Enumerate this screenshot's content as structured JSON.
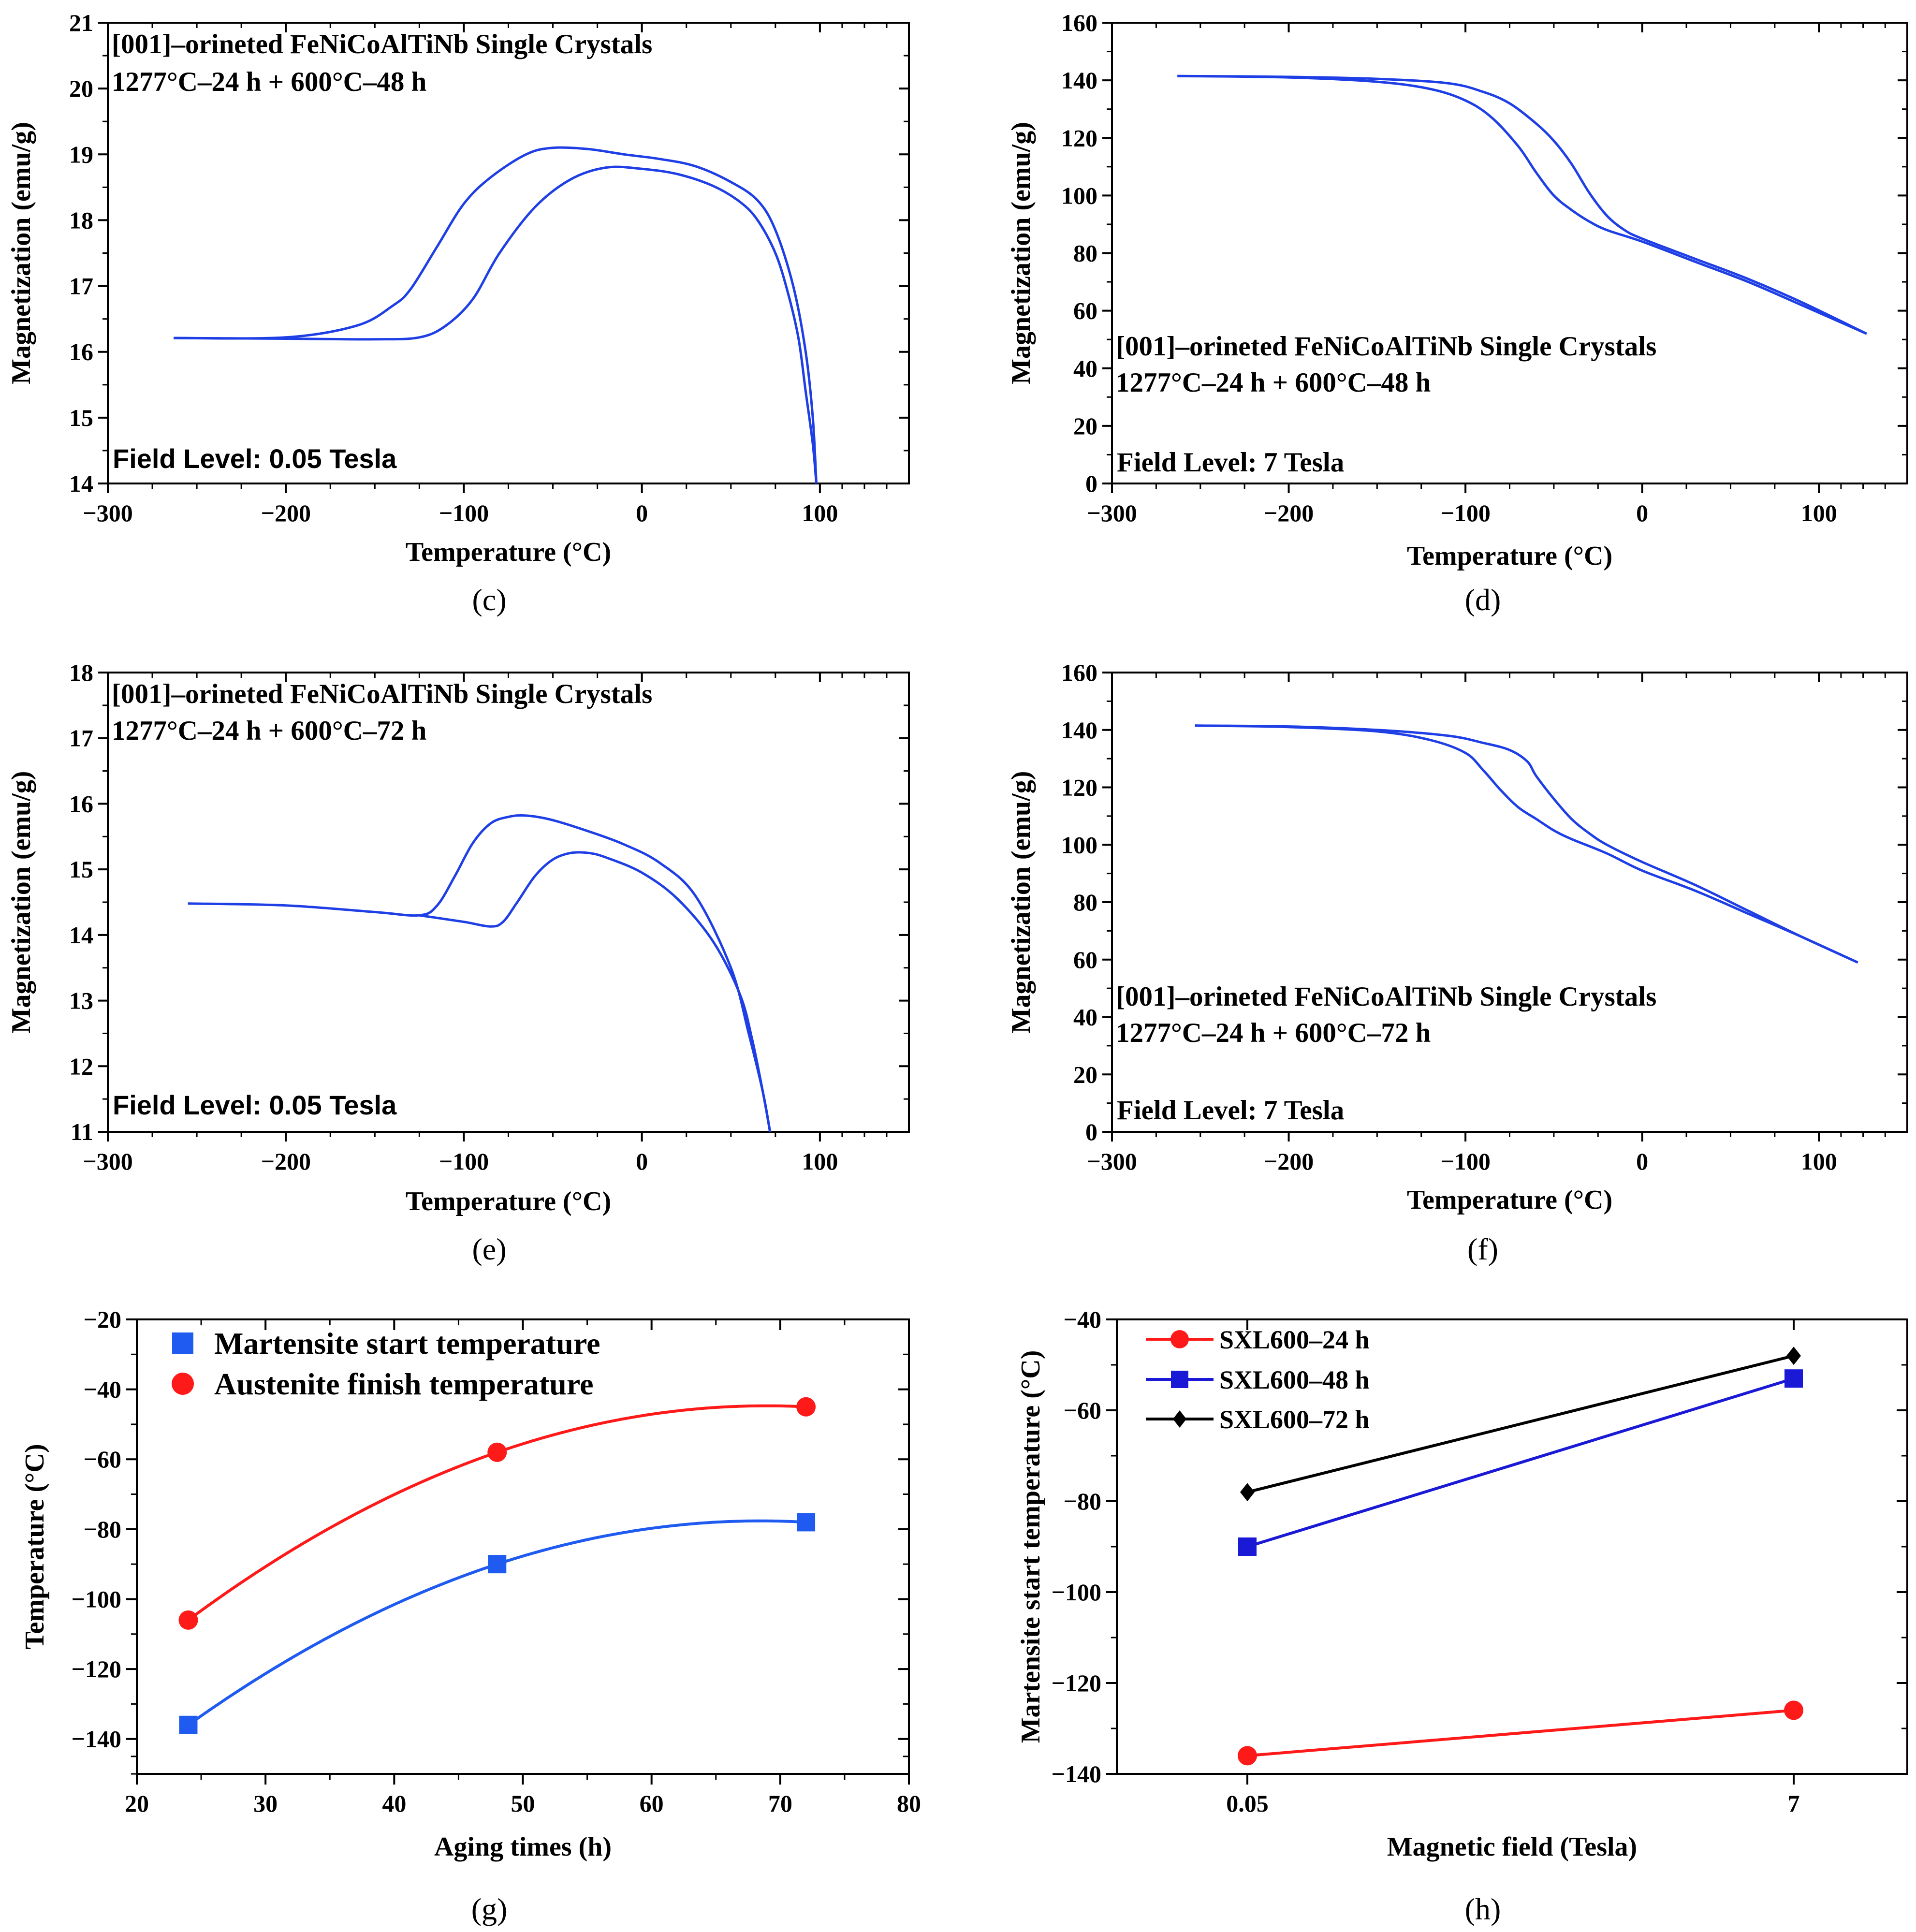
{
  "chart_data": [
    {
      "panel": "(c)",
      "type": "line",
      "annotation_lines": [
        "[001]–orineted FeNiCoAlTiNb Single Crystals",
        "1277°C–24 h + 600°C–48 h"
      ],
      "field_label": "Field Level: 0.05 Tesla",
      "xlabel": "Temperature (°C)",
      "ylabel": "Magnetization (emu/g)",
      "xlim": [
        -300,
        150
      ],
      "ylim": [
        14,
        21
      ],
      "xticks": [
        -300,
        -200,
        -100,
        0,
        100
      ],
      "xtick_labels": [
        "−300",
        "−200",
        "−100",
        "0",
        "100"
      ],
      "yticks": [
        14,
        15,
        16,
        17,
        18,
        19,
        20,
        21
      ],
      "ytick_labels": [
        "14",
        "15",
        "16",
        "17",
        "18",
        "19",
        "20",
        "21"
      ],
      "color": "#1f3fe6",
      "series": [
        {
          "x": [
            -263,
            -200,
            -160,
            -140,
            -130,
            -115,
            -100,
            -85,
            -65,
            -50,
            -30,
            -10,
            10,
            30,
            50,
            65,
            75,
            85,
            92,
            96,
            98
          ],
          "y": [
            16.21,
            16.22,
            16.4,
            16.7,
            16.95,
            17.6,
            18.25,
            18.65,
            19.0,
            19.1,
            19.08,
            19.0,
            18.93,
            18.82,
            18.58,
            18.3,
            17.85,
            17.0,
            16.0,
            15.0,
            14.0
          ]
        },
        {
          "x": [
            -263,
            -200,
            -150,
            -125,
            -110,
            -95,
            -80,
            -60,
            -40,
            -20,
            0,
            20,
            40,
            55,
            65,
            75,
            82,
            88,
            92,
            96,
            98
          ],
          "y": [
            16.21,
            16.2,
            16.19,
            16.22,
            16.4,
            16.8,
            17.5,
            18.2,
            18.62,
            18.8,
            18.78,
            18.7,
            18.52,
            18.28,
            18.0,
            17.5,
            16.9,
            16.2,
            15.4,
            14.6,
            14.0
          ]
        }
      ]
    },
    {
      "panel": "(d)",
      "type": "line",
      "annotation_lines": [
        "[001]–orineted FeNiCoAlTiNb Single Crystals",
        "1277°C–24 h + 600°C–48 h"
      ],
      "field_label": "Field Level: 7 Tesla",
      "xlabel": "Temperature (°C)",
      "ylabel": "Magnetization (emu/g)",
      "xlim": [
        -300,
        150
      ],
      "ylim": [
        0,
        160
      ],
      "xticks": [
        -300,
        -200,
        -100,
        0,
        100
      ],
      "xtick_labels": [
        "−300",
        "−200",
        "−100",
        "0",
        "100"
      ],
      "yticks": [
        0,
        20,
        40,
        60,
        80,
        100,
        120,
        140,
        160
      ],
      "ytick_labels": [
        "0",
        "20",
        "40",
        "60",
        "80",
        "100",
        "120",
        "140",
        "160"
      ],
      "color": "#1f3fe6",
      "series": [
        {
          "x": [
            -263,
            -200,
            -150,
            -120,
            -100,
            -85,
            -70,
            -60,
            -50,
            -40,
            -30,
            -20,
            0,
            30,
            60,
            90,
            127
          ],
          "y": [
            141.5,
            141,
            139.5,
            137,
            133,
            127,
            117,
            108,
            100,
            95,
            91,
            88,
            84,
            77,
            70,
            62,
            52
          ]
        },
        {
          "x": [
            -263,
            -200,
            -150,
            -110,
            -90,
            -75,
            -60,
            -50,
            -40,
            -30,
            -20,
            -10,
            0,
            30,
            60,
            90,
            127
          ],
          "y": [
            141.5,
            141.2,
            140.5,
            139,
            136,
            132,
            125,
            119,
            111,
            101,
            93,
            88,
            85,
            78,
            71,
            63,
            52
          ]
        }
      ]
    },
    {
      "panel": "(e)",
      "type": "line",
      "annotation_lines": [
        "[001]–orineted FeNiCoAlTiNb Single Crystals",
        "1277°C–24 h + 600°C–72 h"
      ],
      "field_label": "Field Level: 0.05 Tesla",
      "xlabel": "Temperature (°C)",
      "ylabel": "Magnetization (emu/g)",
      "xlim": [
        -300,
        150
      ],
      "ylim": [
        11,
        18
      ],
      "xticks": [
        -300,
        -200,
        -100,
        0,
        100
      ],
      "xtick_labels": [
        "−300",
        "−200",
        "−100",
        "0",
        "100"
      ],
      "yticks": [
        11,
        12,
        13,
        14,
        15,
        16,
        17,
        18
      ],
      "ytick_labels": [
        "11",
        "12",
        "13",
        "14",
        "15",
        "16",
        "17",
        "18"
      ],
      "color": "#1f3fe6",
      "series": [
        {
          "x": [
            -255,
            -200,
            -150,
            -125,
            -115,
            -105,
            -95,
            -85,
            -75,
            -65,
            -50,
            -30,
            -10,
            10,
            30,
            50,
            60,
            68,
            72
          ],
          "y": [
            14.48,
            14.45,
            14.35,
            14.3,
            14.45,
            14.9,
            15.4,
            15.7,
            15.8,
            15.82,
            15.75,
            15.58,
            15.38,
            15.1,
            14.6,
            13.5,
            12.5,
            11.6,
            11.0
          ]
        },
        {
          "x": [
            -125,
            -100,
            -85,
            -78,
            -70,
            -60,
            -50,
            -40,
            -30,
            -20,
            0,
            20,
            40,
            55,
            62,
            68,
            72
          ],
          "y": [
            14.3,
            14.2,
            14.13,
            14.2,
            14.5,
            14.9,
            15.15,
            15.25,
            15.25,
            15.18,
            14.95,
            14.55,
            13.9,
            13.1,
            12.4,
            11.6,
            11.0
          ]
        }
      ]
    },
    {
      "panel": "(f)",
      "type": "line",
      "annotation_lines": [
        "[001]–orineted FeNiCoAlTiNb Single Crystals",
        "1277°C–24 h + 600°C–72 h"
      ],
      "field_label": "Field Level: 7 Tesla",
      "xlabel": "Temperature (°C)",
      "ylabel": "Magnetization (emu/g)",
      "xlim": [
        -300,
        150
      ],
      "ylim": [
        0,
        160
      ],
      "xticks": [
        -300,
        -200,
        -100,
        0,
        100
      ],
      "xtick_labels": [
        "−300",
        "−200",
        "−100",
        "0",
        "100"
      ],
      "yticks": [
        0,
        20,
        40,
        60,
        80,
        100,
        120,
        140,
        160
      ],
      "ytick_labels": [
        "0",
        "20",
        "40",
        "60",
        "80",
        "100",
        "120",
        "140",
        "160"
      ],
      "color": "#1f3fe6",
      "series": [
        {
          "x": [
            -253,
            -200,
            -150,
            -120,
            -100,
            -90,
            -80,
            -70,
            -60,
            -50,
            -40,
            -20,
            0,
            30,
            60,
            90,
            122
          ],
          "y": [
            141.5,
            141,
            139.5,
            136.5,
            132,
            126,
            119,
            113,
            109,
            105,
            102,
            97,
            91,
            84,
            76,
            68,
            59
          ]
        },
        {
          "x": [
            -253,
            -200,
            -150,
            -110,
            -90,
            -75,
            -65,
            -60,
            -50,
            -40,
            -30,
            -20,
            0,
            30,
            60,
            90,
            122
          ],
          "y": [
            141.5,
            141.2,
            140,
            138,
            135.5,
            133,
            129,
            124,
            116,
            109,
            104,
            100,
            94,
            86,
            77,
            68,
            59
          ]
        }
      ]
    },
    {
      "panel": "(g)",
      "type": "scatter",
      "xlabel": "Aging times (h)",
      "ylabel": "Temperature (°C)",
      "xlim": [
        20,
        80
      ],
      "ylim": [
        -150,
        -20
      ],
      "xticks": [
        20,
        30,
        40,
        50,
        60,
        70,
        80
      ],
      "xtick_labels": [
        "20",
        "30",
        "40",
        "50",
        "60",
        "70",
        "80"
      ],
      "yticks": [
        -140,
        -120,
        -100,
        -80,
        -60,
        -40,
        -20
      ],
      "ytick_labels": [
        "−140",
        "−120",
        "−100",
        "−80",
        "−60",
        "−40",
        "−20"
      ],
      "legend": "top-left",
      "series": [
        {
          "name": "Martensite start temperature",
          "marker": "square",
          "color": "#1f5bf0",
          "x": [
            24,
            48,
            72
          ],
          "y": [
            -136,
            -90,
            -78
          ]
        },
        {
          "name": "Austenite finish temperature",
          "marker": "circle",
          "color": "#ff1a1a",
          "x": [
            24,
            48,
            72
          ],
          "y": [
            -106,
            -58,
            -45
          ]
        }
      ]
    },
    {
      "panel": "(h)",
      "type": "line",
      "xlabel": "Magnetic field (Tesla)",
      "ylabel": "Martensite start temperature (°C)",
      "categories": [
        "0.05",
        "7"
      ],
      "ylim": [
        -140,
        -40
      ],
      "yticks": [
        -140,
        -120,
        -100,
        -80,
        -60,
        -40
      ],
      "ytick_labels": [
        "−140",
        "−120",
        "−100",
        "−80",
        "−60",
        "−40"
      ],
      "legend": "top-left",
      "series": [
        {
          "name": "SXL600–24 h",
          "marker": "circle",
          "color": "#ff1a1a",
          "values": [
            -136,
            -126
          ]
        },
        {
          "name": "SXL600–48 h",
          "marker": "square",
          "color": "#1a1ad6",
          "values": [
            -90,
            -53
          ]
        },
        {
          "name": "SXL600–72 h",
          "marker": "diamond",
          "color": "#000000",
          "values": [
            -78,
            -48
          ]
        }
      ]
    }
  ]
}
